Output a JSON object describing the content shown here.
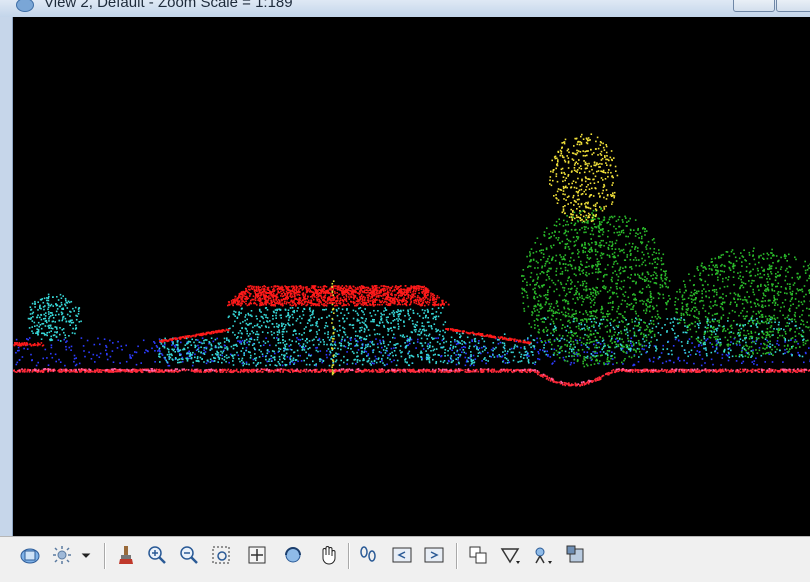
{
  "window": {
    "title": "View 2, Default - Zoom Scale = 1:189"
  },
  "colors": {
    "ground": "#ff2a3a",
    "roof": "#ff1a1a",
    "walls": "#37d8d8",
    "low_veg": "#2d3cff",
    "high_veg": "#2bbb2b",
    "tree_top": "#f2e23a"
  },
  "toolbar": {
    "buttons": [
      {
        "name": "view-display-mode-icon"
      },
      {
        "name": "lighting-icon"
      },
      {
        "name": "dropdown-arrow-icon"
      },
      {
        "name": "brush-icon"
      },
      {
        "name": "zoom-in-icon"
      },
      {
        "name": "zoom-out-icon"
      },
      {
        "name": "window-area-icon"
      },
      {
        "name": "fit-view-icon"
      },
      {
        "name": "rotate-view-icon"
      },
      {
        "name": "pan-view-icon"
      },
      {
        "name": "walk-icon"
      },
      {
        "name": "previous-view-icon"
      },
      {
        "name": "next-view-icon"
      },
      {
        "name": "copy-view-icon"
      },
      {
        "name": "view-volume-icon"
      },
      {
        "name": "camera-icon"
      },
      {
        "name": "render-icon"
      }
    ]
  }
}
